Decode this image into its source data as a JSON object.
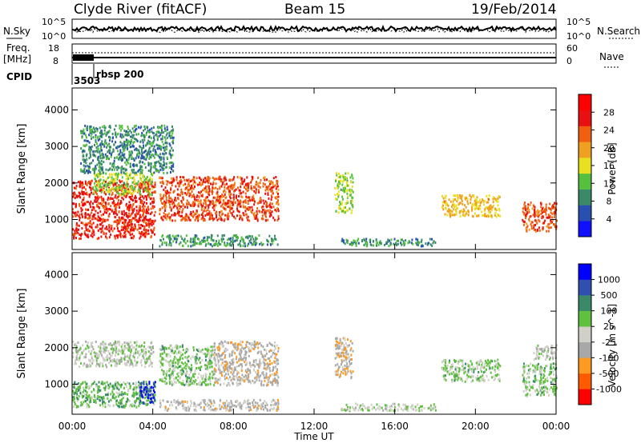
{
  "header": {
    "station": "Clyde River (fitACF)",
    "beam": "Beam 15",
    "date": "19/Feb/2014"
  },
  "top_panels": {
    "nsky_label": "N.Sky",
    "nsearch_label": "N.Search",
    "nsky_ticks": [
      "10^5",
      "10^0"
    ],
    "nsearch_ticks": [
      "10^5",
      "10^0"
    ],
    "freq_label": "Freq.",
    "freq_unit": "[MHz]",
    "freq_ticks": [
      "18",
      "8"
    ],
    "nave_label": "Nave",
    "nave_ticks": [
      "60",
      "0"
    ],
    "cpid_label": "CPID",
    "cpid_number": "3503",
    "cpid_name": "rbsp 200"
  },
  "colors": {
    "power": [
      "#1010ff",
      "#2850b0",
      "#3a8a6a",
      "#55c040",
      "#e8e020",
      "#f0a020",
      "#f06010",
      "#e81010",
      "#ff0000"
    ],
    "velocity": [
      "#ff0000",
      "#ff5a00",
      "#ff9a20",
      "#a8a8a8",
      "#d0d0c8",
      "#60c040",
      "#3a8a6a",
      "#3050b0",
      "#0000ff"
    ]
  },
  "chart_data": [
    {
      "type": "heatmap",
      "panel": "power",
      "ylabel": "Slant Range [km]",
      "xlabel": "",
      "xlim": [
        "00:00",
        "24:00"
      ],
      "ylim": [
        180,
        4600
      ],
      "x_ticks": [
        "00:00",
        "04:00",
        "08:00",
        "12:00",
        "16:00",
        "20:00",
        "00:00"
      ],
      "y_ticks": [
        "1000",
        "2000",
        "3000",
        "4000"
      ],
      "colorbar": {
        "label": "Power [dB]",
        "ticks": [
          "4",
          "8",
          "12",
          "16",
          "20",
          "24",
          "28"
        ],
        "range": [
          0,
          32
        ]
      },
      "regions": [
        {
          "t": [
            0.0,
            4.1
          ],
          "r": [
            500,
            2100
          ],
          "value": 26
        },
        {
          "t": [
            1.0,
            4.0
          ],
          "r": [
            1700,
            2300
          ],
          "value": 14
        },
        {
          "t": [
            4.3,
            10.2
          ],
          "r": [
            1000,
            2200
          ],
          "value": 24
        },
        {
          "t": [
            4.3,
            10.2
          ],
          "r": [
            300,
            600
          ],
          "value": 10
        },
        {
          "t": [
            0.4,
            5.0
          ],
          "r": [
            2300,
            3600
          ],
          "value": 9
        },
        {
          "t": [
            13.0,
            13.9
          ],
          "r": [
            1200,
            2300
          ],
          "value": 14
        },
        {
          "t": [
            13.3,
            18.0
          ],
          "r": [
            300,
            500
          ],
          "value": 9
        },
        {
          "t": [
            18.3,
            21.2
          ],
          "r": [
            1100,
            1700
          ],
          "value": 18
        },
        {
          "t": [
            22.3,
            24.0
          ],
          "r": [
            700,
            1500
          ],
          "value": 24
        }
      ]
    },
    {
      "type": "heatmap",
      "panel": "velocity",
      "ylabel": "Slant Range [km]",
      "xlabel": "Time UT",
      "xlim": [
        "00:00",
        "24:00"
      ],
      "ylim": [
        180,
        4600
      ],
      "x_ticks": [
        "00:00",
        "04:00",
        "08:00",
        "12:00",
        "16:00",
        "20:00",
        "00:00"
      ],
      "y_ticks": [
        "1000",
        "2000",
        "3000",
        "4000"
      ],
      "colorbar": {
        "label": "Velocity [m s^-1]",
        "ticks": [
          "-1000",
          "-500",
          "-100",
          "-25",
          "25",
          "100",
          "500",
          "1000"
        ],
        "range": [
          -1200,
          1200
        ]
      },
      "regions": [
        {
          "t": [
            0.0,
            4.1
          ],
          "r": [
            400,
            1100
          ],
          "value": 300
        },
        {
          "t": [
            0.0,
            4.0
          ],
          "r": [
            1500,
            2200
          ],
          "value": 0
        },
        {
          "t": [
            3.3,
            4.1
          ],
          "r": [
            500,
            1100
          ],
          "value": 900
        },
        {
          "t": [
            4.3,
            7.0
          ],
          "r": [
            1000,
            2100
          ],
          "value": 200
        },
        {
          "t": [
            7.0,
            10.2
          ],
          "r": [
            1000,
            2200
          ],
          "value": -250
        },
        {
          "t": [
            4.3,
            10.2
          ],
          "r": [
            300,
            600
          ],
          "value": -200
        },
        {
          "t": [
            13.0,
            13.9
          ],
          "r": [
            1200,
            2300
          ],
          "value": -250
        },
        {
          "t": [
            13.3,
            18.0
          ],
          "r": [
            300,
            500
          ],
          "value": 80
        },
        {
          "t": [
            18.3,
            21.2
          ],
          "r": [
            1100,
            1700
          ],
          "value": 180
        },
        {
          "t": [
            22.3,
            24.0
          ],
          "r": [
            700,
            1600
          ],
          "value": 200
        },
        {
          "t": [
            22.8,
            24.0
          ],
          "r": [
            1700,
            2100
          ],
          "value": -10
        }
      ]
    }
  ]
}
